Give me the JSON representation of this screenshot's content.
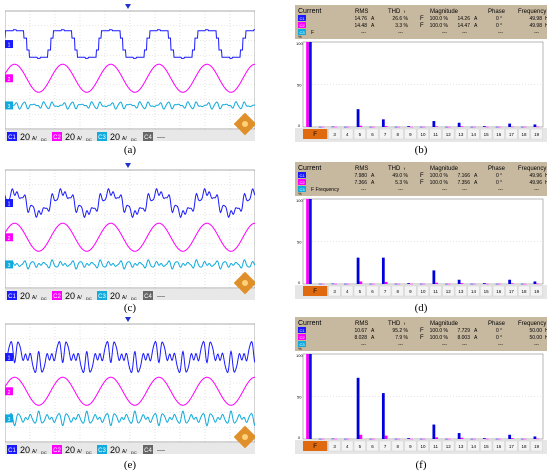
{
  "captions": [
    "(a)",
    "(b)",
    "(c)",
    "(d)",
    "(e)",
    "(f)"
  ],
  "colors": {
    "ch1": "#1a1aff",
    "ch2": "#ff00ff",
    "ch3": "#11aadd",
    "h1_bar": "#ff00ff",
    "h_bar": "#0000dd",
    "header_bg": "#c7b8a0",
    "fund_orange": "#e06a10"
  },
  "scope": {
    "status": {
      "ch1": "C1",
      "ch2": "C2",
      "ch3": "C3",
      "ch4": "C4",
      "scale": "20",
      "unit": "A/",
      "coupling": "DC",
      "dashes": "----"
    },
    "trigger_marker": "T"
  },
  "analyzer": {
    "headers": {
      "current": "Current",
      "rms": "RMS",
      "thd": "THD",
      "thd_sub": "f",
      "magnitude": "Magnitude",
      "phase": "Phase",
      "frequency": "Frequency"
    },
    "units": {
      "amp": "A",
      "hz": "Hz",
      "pct": "%",
      "deg": "0 °"
    },
    "axis_labels": {
      "pct": "%",
      "ticks": [
        "100",
        "50",
        "0"
      ]
    },
    "f_label": "F",
    "harmonic_labels": [
      "3",
      "4",
      "5",
      "6",
      "7",
      "8",
      "9",
      "10",
      "11",
      "12",
      "13",
      "14",
      "15",
      "16",
      "17",
      "18",
      "19"
    ],
    "dash": "---"
  },
  "panels": [
    {
      "id": "b",
      "row1": {
        "rms": "14.76",
        "thd": "26.6 %",
        "mag_pct": "100.0 %",
        "mag_a": "14.26",
        "phase": "0 °",
        "freq": "49.98"
      },
      "row2": {
        "rms": "14.48",
        "thd": "3.3 %",
        "mag_pct": "100.0 %",
        "mag_a": "14.47",
        "phase": "0 °",
        "freq": "49.98"
      },
      "row3_note": "F",
      "chart_data": {
        "type": "bar",
        "categories": [
          "1",
          "2",
          "3",
          "4",
          "5",
          "6",
          "7",
          "8",
          "9",
          "10",
          "11",
          "12",
          "13",
          "14",
          "15",
          "16",
          "17",
          "18",
          "19"
        ],
        "ylim": [
          0,
          100
        ],
        "series": [
          {
            "values": [
              100,
              0.3,
              0.5,
              0.3,
              21,
              0.3,
              9,
              0.3,
              1,
              0.3,
              7,
              0.3,
              5,
              0.3,
              1,
              0.3,
              4,
              0.3,
              3
            ]
          },
          {
            "values": [
              100,
              0.3,
              0.3,
              0.3,
              1.5,
              0.3,
              1,
              0.3,
              0.3,
              0.3,
              0.8,
              0.3,
              0.8,
              0.3,
              0.3,
              0.3,
              0.5,
              0.3,
              0.5
            ]
          }
        ]
      }
    },
    {
      "id": "d",
      "row1": {
        "rms": "7.980",
        "thd": "49.0 %",
        "mag_pct": "100.0 %",
        "mag_a": "7.166",
        "phase": "0 °",
        "freq": "49.96"
      },
      "row2": {
        "rms": "7.366",
        "thd": "5.3 %",
        "mag_pct": "100.0 %",
        "mag_a": "7.356",
        "phase": "0 °",
        "freq": "49.96"
      },
      "row3_note": "F  Frequency",
      "chart_data": {
        "type": "bar",
        "categories": [
          "1",
          "2",
          "3",
          "4",
          "5",
          "6",
          "7",
          "8",
          "9",
          "10",
          "11",
          "12",
          "13",
          "14",
          "15",
          "16",
          "17",
          "18",
          "19"
        ],
        "ylim": [
          0,
          100
        ],
        "series": [
          {
            "values": [
              100,
              0.3,
              0.5,
              0.3,
              31,
              0.3,
              31,
              0.3,
              1,
              0.3,
              16,
              0.3,
              5,
              0.3,
              1,
              0.3,
              5,
              0.3,
              3
            ]
          },
          {
            "values": [
              100,
              0.3,
              0.3,
              0.3,
              3,
              0.3,
              2.5,
              0.3,
              0.3,
              0.3,
              1.5,
              0.3,
              1,
              0.3,
              0.3,
              0.3,
              0.8,
              0.3,
              0.5
            ]
          }
        ]
      }
    },
    {
      "id": "f",
      "row1": {
        "rms": "10.67",
        "thd": "95.2 %",
        "mag_pct": "100.0 %",
        "mag_a": "7.729",
        "phase": "0 °",
        "freq": "50.00"
      },
      "row2": {
        "rms": "8.028",
        "thd": "7.9 %",
        "mag_pct": "100.0 %",
        "mag_a": "8.003",
        "phase": "0 °",
        "freq": "50.00"
      },
      "row3_note": "",
      "chart_data": {
        "type": "bar",
        "categories": [
          "1",
          "2",
          "3",
          "4",
          "5",
          "6",
          "7",
          "8",
          "9",
          "10",
          "11",
          "12",
          "13",
          "14",
          "15",
          "16",
          "17",
          "18",
          "19"
        ],
        "ylim": [
          0,
          100
        ],
        "series": [
          {
            "values": [
              100,
              0.3,
              0.5,
              0.3,
              72,
              0.3,
              54,
              0.3,
              1,
              0.3,
              17,
              0.3,
              7,
              0.3,
              1,
              0.3,
              5,
              0.3,
              3
            ]
          },
          {
            "values": [
              100,
              0.3,
              0.3,
              0.3,
              5,
              0.3,
              4,
              0.3,
              0.3,
              0.3,
              2,
              0.3,
              1.5,
              0.3,
              0.3,
              0.3,
              1,
              0.3,
              0.5
            ]
          }
        ]
      }
    }
  ]
}
